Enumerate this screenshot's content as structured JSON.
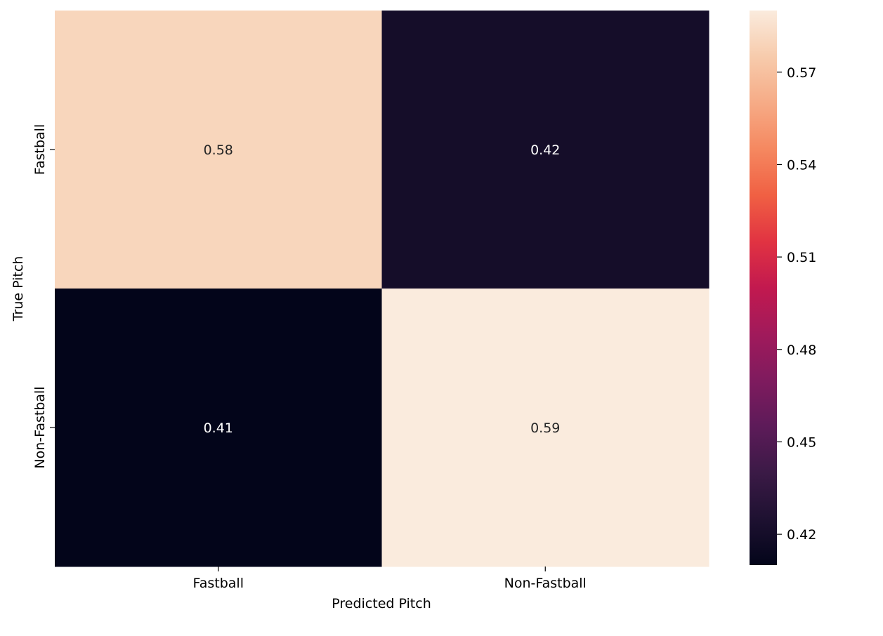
{
  "chart_data": {
    "type": "heatmap",
    "title": "",
    "xlabel": "Predicted Pitch",
    "ylabel": "True Pitch",
    "x_categories": [
      "Fastball",
      "Non-Fastball"
    ],
    "y_categories": [
      "Fastball",
      "Non-Fastball"
    ],
    "values": [
      [
        0.58,
        0.42
      ],
      [
        0.41,
        0.59
      ]
    ],
    "annotations": [
      [
        "0.58",
        "0.42"
      ],
      [
        "0.41",
        "0.59"
      ]
    ],
    "colorbar": {
      "vmin": 0.41,
      "vmax": 0.59,
      "ticks": [
        0.42,
        0.45,
        0.48,
        0.51,
        0.54,
        0.57
      ],
      "tick_labels": [
        "0.42",
        "0.45",
        "0.48",
        "0.51",
        "0.54",
        "0.57"
      ],
      "colormap": "rocket"
    },
    "grid": false
  },
  "colors": {
    "rocket_stops": [
      "#03051a",
      "#1e1131",
      "#3b1a46",
      "#5d1b59",
      "#7f1b5e",
      "#a11a5b",
      "#c2194f",
      "#e13342",
      "#f06043",
      "#f58860",
      "#f6ab86",
      "#f7cbac",
      "#faebdd"
    ],
    "annotation_dark_text": "#262626",
    "annotation_light_text": "#ffffff",
    "axis_color": "#000000"
  }
}
